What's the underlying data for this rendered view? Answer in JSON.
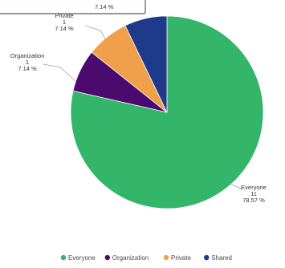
{
  "chart_data": {
    "type": "pie",
    "title": "",
    "slices": [
      {
        "name": "Everyone",
        "value": 11,
        "percent": "78.57 %",
        "color": "#33b56a"
      },
      {
        "name": "Organization",
        "value": 1,
        "percent": "7.14 %",
        "color": "#4b0a6e"
      },
      {
        "name": "Private",
        "value": 1,
        "percent": "7.14 %",
        "color": "#f0a04b"
      },
      {
        "name": "Shared",
        "value": 1,
        "percent": "7.14 %",
        "color": "#1f3a8a"
      }
    ],
    "legend": {
      "position": "bottom-right"
    },
    "tooltip": {
      "text": "7.14 %"
    }
  }
}
